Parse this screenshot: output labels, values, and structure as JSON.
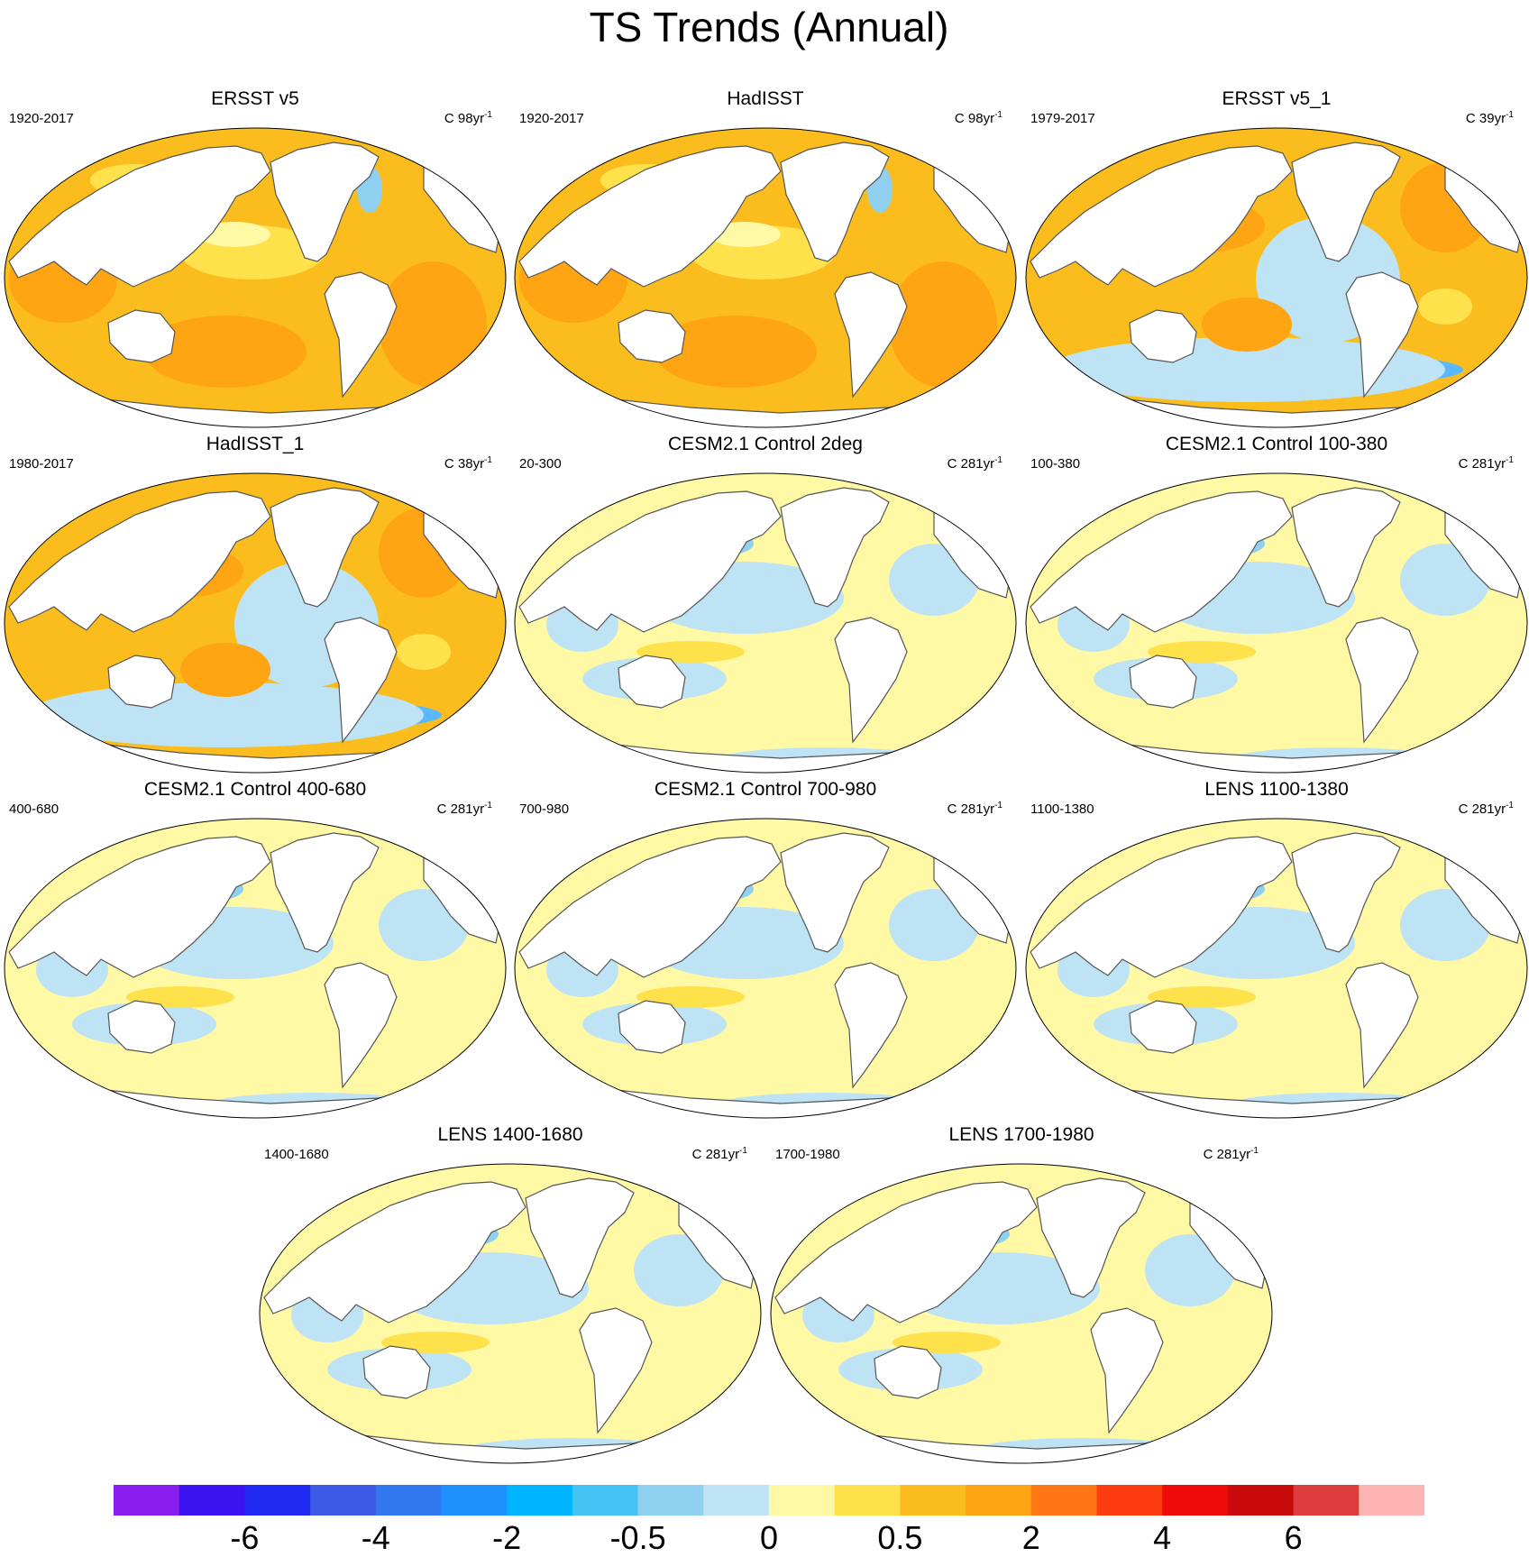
{
  "title": "TS Trends (Annual)",
  "units_prefix": "C",
  "palette": {
    "land": "#ffffff",
    "coast": "#555555",
    "frame": "#000000",
    "neg3": "#1e90ff",
    "neg2": "#5ab8ff",
    "neg1": "#8fd0f0",
    "neg0": "#bde3f5",
    "pos0": "#fff8a5",
    "pos1": "#ffe14b",
    "pos2": "#fbbd1d",
    "pos3": "#ffa412"
  },
  "panels": [
    {
      "title": "ERSST v5",
      "period": "1920-2017",
      "trend": "98yr",
      "exp": "-1",
      "scheme": "warm"
    },
    {
      "title": "HadISST",
      "period": "1920-2017",
      "trend": "98yr",
      "exp": "-1",
      "scheme": "warm"
    },
    {
      "title": "ERSST v5_1",
      "period": "1979-2017",
      "trend": "39yr",
      "exp": "-1",
      "scheme": "recent"
    },
    {
      "title": "HadISST_1",
      "period": "1980-2017",
      "trend": "38yr",
      "exp": "-1",
      "scheme": "recent"
    },
    {
      "title": "CESM2.1 Control 2deg",
      "period": "20-300",
      "trend": "281yr",
      "exp": "-1",
      "scheme": "control"
    },
    {
      "title": "CESM2.1 Control 100-380",
      "period": "100-380",
      "trend": "281yr",
      "exp": "-1",
      "scheme": "control"
    },
    {
      "title": "CESM2.1 Control 400-680",
      "period": "400-680",
      "trend": "281yr",
      "exp": "-1",
      "scheme": "control"
    },
    {
      "title": "CESM2.1 Control 700-980",
      "period": "700-980",
      "trend": "281yr",
      "exp": "-1",
      "scheme": "control"
    },
    {
      "title": "LENS 1100-1380",
      "period": "1100-1380",
      "trend": "281yr",
      "exp": "-1",
      "scheme": "control"
    },
    {
      "title": "LENS 1400-1680",
      "period": "1400-1680",
      "trend": "281yr",
      "exp": "-1",
      "scheme": "control"
    },
    {
      "title": "LENS 1700-1980",
      "period": "1700-1980",
      "trend": "281yr",
      "exp": "-1",
      "scheme": "control"
    }
  ],
  "colorbar": {
    "colors": [
      "#8a1ef0",
      "#3c14f2",
      "#1e28f0",
      "#3c5ae6",
      "#3278f0",
      "#1e90ff",
      "#00b4ff",
      "#46c3f5",
      "#8fd0f0",
      "#bde3f5",
      "#fff8a5",
      "#ffe14b",
      "#fbbd1d",
      "#ffa412",
      "#ff7814",
      "#ff3c0f",
      "#f00a0a",
      "#c80a0a",
      "#dc3c3c",
      "#ffb4b4"
    ],
    "tick_labels": [
      {
        "text": "-6",
        "boundary": 2
      },
      {
        "text": "-4",
        "boundary": 4
      },
      {
        "text": "-2",
        "boundary": 6
      },
      {
        "text": "-0.5",
        "boundary": 8
      },
      {
        "text": "0",
        "boundary": 10
      },
      {
        "text": "0.5",
        "boundary": 12
      },
      {
        "text": "2",
        "boundary": 14
      },
      {
        "text": "4",
        "boundary": 16
      },
      {
        "text": "6",
        "boundary": 18
      }
    ]
  }
}
